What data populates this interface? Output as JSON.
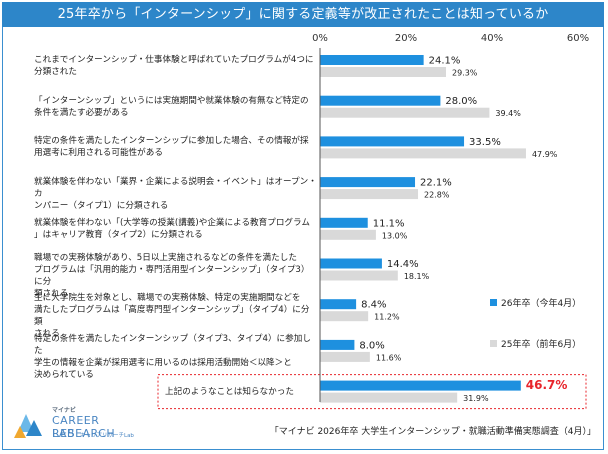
{
  "chart_data": {
    "type": "bar",
    "orientation": "horizontal",
    "title": "25年卒から「インターンシップ」に関する定義等が改正されたことは知っているか",
    "xlim": [
      0,
      60
    ],
    "ticks": [
      "0%",
      "20%",
      "40%",
      "60%"
    ],
    "tick_values": [
      0,
      20,
      40,
      60
    ],
    "categories": [
      [
        "これまでインターンシップ・仕事体験と呼ばれていたプログラムが4つに",
        "分類された"
      ],
      [
        "「インターンシップ」というには実施期間や就業体験の有無など特定の",
        "条件を満たす必要がある"
      ],
      [
        "特定の条件を満たしたインターンシップに参加した場合、その情報が採",
        "用選考に利用される可能性がある"
      ],
      [
        "就業体験を伴わない「業界・企業による説明会・イベント」はオープン・カ",
        "ンパニー（タイプ1）に分類される"
      ],
      [
        "就業体験を伴わない「(大学等の授業(講義)や企業による教育プログラム",
        "」はキャリア教育（タイプ2）に分類される"
      ],
      [
        "職場での実務体験があり、5日以上実施されるなどの条件を満たした",
        "プログラムは「汎用的能力・専門活用型インターンシップ」（タイプ3）に分",
        "類される"
      ],
      [
        "主に大学院生を対象とし、職場での実務体験、特定の実施期間などを",
        "満たしたプログラムは「高度専門型インターンシップ」（タイプ4）に分類",
        "される"
      ],
      [
        "特定の条件を満たしたインターンシップ（タイプ3、タイプ4）に参加した",
        "学生の情報を企業が採用選考に用いるのは採用活動開始＜以降＞と",
        "決められている"
      ],
      [
        "上記のようなことは知らなかった"
      ]
    ],
    "series": [
      {
        "name": "26年卒（今年4月）",
        "color": "#1e90df",
        "values": [
          24.1,
          28.0,
          33.5,
          22.1,
          11.1,
          14.4,
          8.4,
          8.0,
          46.7
        ],
        "labels": [
          "24.1%",
          "28.0%",
          "33.5%",
          "22.1%",
          "11.1%",
          "14.4%",
          "8.4%",
          "8.0%",
          "46.7%"
        ]
      },
      {
        "name": "25年卒（前年6月）",
        "color": "#d9d9d9",
        "values": [
          29.3,
          39.4,
          47.9,
          22.8,
          13.0,
          18.1,
          11.2,
          11.6,
          31.9
        ],
        "labels": [
          "29.3%",
          "39.4%",
          "47.9%",
          "22.8%",
          "13.0%",
          "18.1%",
          "11.2%",
          "11.6%",
          "31.9%"
        ]
      }
    ],
    "highlight_category_index": 8,
    "highlight_color": "#e8242b"
  },
  "source": "「マイナビ 2026年卒 大学生インターンシップ・就職活動準備実態調査（4月）」",
  "logo": {
    "top": "マイナビ",
    "line1": "CAREER RESEARCH",
    "line2": "LAB",
    "sub": "キャリアリサーチLab"
  }
}
